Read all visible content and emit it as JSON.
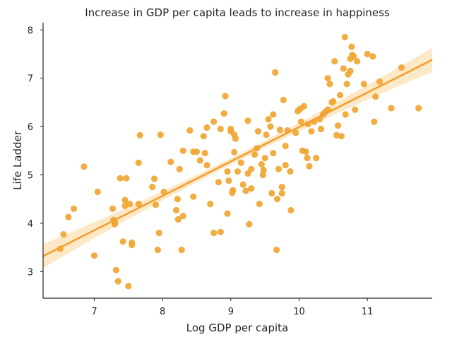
{
  "chart_data": {
    "type": "scatter",
    "title": "Increase in GDP per capita leads to increase in happiness",
    "xlabel": "Log GDP per capita",
    "ylabel": "Life Ladder",
    "xlim": [
      6.25,
      11.95
    ],
    "ylim": [
      2.45,
      8.15
    ],
    "xticks": [
      7,
      8,
      9,
      10,
      11
    ],
    "yticks": [
      3,
      4,
      5,
      6,
      7,
      8
    ],
    "grid": false,
    "colors": {
      "points": "#f0a532",
      "line": "#f0a030",
      "band": "#fde6c2",
      "axis": "#262626"
    },
    "regression": {
      "x": [
        6.25,
        11.95
      ],
      "y": [
        3.32,
        7.38
      ],
      "ci_halfwidth_ends": 0.25,
      "ci_halfwidth_center": 0.07
    },
    "points": [
      [
        6.5,
        3.47
      ],
      [
        6.55,
        3.77
      ],
      [
        6.62,
        4.13
      ],
      [
        6.7,
        4.3
      ],
      [
        6.85,
        5.17
      ],
      [
        7.0,
        3.33
      ],
      [
        7.05,
        4.65
      ],
      [
        7.27,
        4.3
      ],
      [
        7.28,
        4.07
      ],
      [
        7.3,
        3.98
      ],
      [
        7.3,
        4.03
      ],
      [
        7.32,
        3.03
      ],
      [
        7.35,
        2.8
      ],
      [
        7.38,
        4.93
      ],
      [
        7.42,
        3.62
      ],
      [
        7.45,
        4.36
      ],
      [
        7.45,
        4.48
      ],
      [
        7.47,
        4.93
      ],
      [
        7.5,
        2.7
      ],
      [
        7.52,
        4.4
      ],
      [
        7.55,
        3.6
      ],
      [
        7.55,
        3.55
      ],
      [
        7.65,
        4.4
      ],
      [
        7.65,
        5.25
      ],
      [
        7.67,
        5.82
      ],
      [
        7.85,
        4.75
      ],
      [
        7.88,
        4.92
      ],
      [
        7.9,
        4.38
      ],
      [
        7.93,
        3.45
      ],
      [
        7.95,
        3.8
      ],
      [
        7.97,
        5.83
      ],
      [
        8.02,
        4.65
      ],
      [
        8.12,
        5.27
      ],
      [
        8.2,
        4.27
      ],
      [
        8.22,
        4.5
      ],
      [
        8.23,
        4.08
      ],
      [
        8.25,
        5.12
      ],
      [
        8.28,
        3.45
      ],
      [
        8.3,
        5.5
      ],
      [
        8.3,
        4.15
      ],
      [
        8.4,
        5.92
      ],
      [
        8.45,
        4.55
      ],
      [
        8.45,
        5.48
      ],
      [
        8.5,
        5.48
      ],
      [
        8.55,
        5.3
      ],
      [
        8.6,
        5.8
      ],
      [
        8.62,
        5.45
      ],
      [
        8.65,
        5.98
      ],
      [
        8.65,
        5.2
      ],
      [
        8.7,
        4.4
      ],
      [
        8.75,
        3.8
      ],
      [
        8.75,
        6.1
      ],
      [
        8.82,
        4.85
      ],
      [
        8.85,
        3.82
      ],
      [
        8.85,
        5.95
      ],
      [
        8.9,
        6.27
      ],
      [
        8.92,
        6.63
      ],
      [
        8.95,
        5.07
      ],
      [
        8.95,
        4.2
      ],
      [
        8.97,
        4.88
      ],
      [
        9.0,
        5.9
      ],
      [
        9.0,
        5.95
      ],
      [
        9.02,
        4.63
      ],
      [
        9.03,
        4.68
      ],
      [
        9.05,
        5.47
      ],
      [
        9.05,
        5.83
      ],
      [
        9.07,
        5.75
      ],
      [
        9.1,
        5.07
      ],
      [
        9.15,
        5.25
      ],
      [
        9.18,
        4.8
      ],
      [
        9.22,
        4.67
      ],
      [
        9.25,
        6.12
      ],
      [
        9.25,
        5.03
      ],
      [
        9.27,
        3.98
      ],
      [
        9.3,
        4.72
      ],
      [
        9.3,
        5.12
      ],
      [
        9.35,
        5.42
      ],
      [
        9.38,
        5.55
      ],
      [
        9.4,
        5.9
      ],
      [
        9.42,
        4.4
      ],
      [
        9.45,
        5.22
      ],
      [
        9.47,
        5.0
      ],
      [
        9.48,
        5.1
      ],
      [
        9.5,
        5.35
      ],
      [
        9.52,
        5.83
      ],
      [
        9.55,
        6.15
      ],
      [
        9.58,
        6.0
      ],
      [
        9.6,
        4.62
      ],
      [
        9.62,
        5.45
      ],
      [
        9.62,
        6.25
      ],
      [
        9.65,
        7.12
      ],
      [
        9.67,
        3.45
      ],
      [
        9.68,
        4.5
      ],
      [
        9.7,
        5.12
      ],
      [
        9.72,
        5.93
      ],
      [
        9.75,
        4.75
      ],
      [
        9.75,
        4.62
      ],
      [
        9.77,
        6.55
      ],
      [
        9.8,
        5.2
      ],
      [
        9.8,
        5.6
      ],
      [
        9.83,
        5.92
      ],
      [
        9.87,
        5.07
      ],
      [
        9.88,
        4.27
      ],
      [
        9.95,
        5.87
      ],
      [
        9.98,
        6.32
      ],
      [
        10.02,
        6.37
      ],
      [
        10.03,
        6.1
      ],
      [
        10.05,
        5.5
      ],
      [
        10.07,
        6.42
      ],
      [
        10.1,
        5.48
      ],
      [
        10.12,
        5.35
      ],
      [
        10.13,
        6.05
      ],
      [
        10.15,
        5.18
      ],
      [
        10.18,
        5.9
      ],
      [
        10.22,
        6.1
      ],
      [
        10.25,
        5.35
      ],
      [
        10.3,
        6.15
      ],
      [
        10.32,
        5.95
      ],
      [
        10.35,
        6.25
      ],
      [
        10.38,
        6.3
      ],
      [
        10.42,
        6.35
      ],
      [
        10.42,
        7.0
      ],
      [
        10.45,
        6.88
      ],
      [
        10.48,
        6.5
      ],
      [
        10.5,
        6.52
      ],
      [
        10.52,
        7.35
      ],
      [
        10.55,
        5.82
      ],
      [
        10.57,
        6.02
      ],
      [
        10.6,
        6.65
      ],
      [
        10.62,
        5.8
      ],
      [
        10.65,
        7.2
      ],
      [
        10.67,
        7.85
      ],
      [
        10.68,
        6.25
      ],
      [
        10.7,
        6.88
      ],
      [
        10.72,
        7.08
      ],
      [
        10.75,
        7.15
      ],
      [
        10.75,
        7.4
      ],
      [
        10.77,
        7.65
      ],
      [
        10.78,
        7.48
      ],
      [
        10.8,
        7.45
      ],
      [
        10.82,
        6.35
      ],
      [
        10.85,
        7.35
      ],
      [
        10.95,
        6.88
      ],
      [
        11.0,
        7.5
      ],
      [
        11.08,
        7.45
      ],
      [
        11.1,
        6.1
      ],
      [
        11.12,
        6.62
      ],
      [
        11.18,
        6.93
      ],
      [
        11.35,
        6.38
      ],
      [
        11.5,
        7.22
      ],
      [
        11.75,
        6.38
      ]
    ]
  }
}
